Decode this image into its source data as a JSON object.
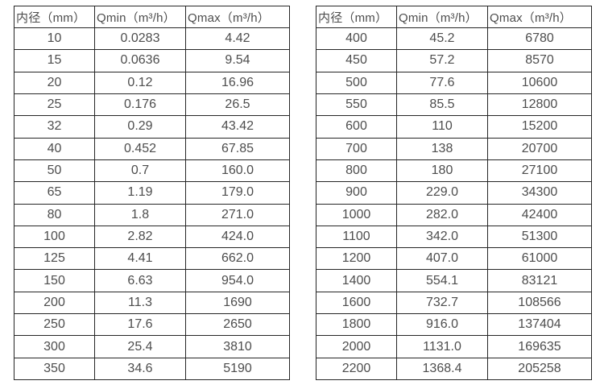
{
  "page": {
    "background": "#ffffff",
    "border_color": "#262626",
    "text_color": "#4d4d4d"
  },
  "left_table": {
    "headers": [
      "内径（mm）",
      "Qmin（m³/h）",
      "Qmax（m³/h）"
    ],
    "rows": [
      [
        "10",
        "0.0283",
        "4.42"
      ],
      [
        "15",
        "0.0636",
        "9.54"
      ],
      [
        "20",
        "0.12",
        "16.96"
      ],
      [
        "25",
        "0.176",
        "26.5"
      ],
      [
        "32",
        "0.29",
        "43.42"
      ],
      [
        "40",
        "0.452",
        "67.85"
      ],
      [
        "50",
        "0.7",
        "160.0"
      ],
      [
        "65",
        "1.19",
        "179.0"
      ],
      [
        "80",
        "1.8",
        "271.0"
      ],
      [
        "100",
        "2.82",
        "424.0"
      ],
      [
        "125",
        "4.41",
        "662.0"
      ],
      [
        "150",
        "6.63",
        "954.0"
      ],
      [
        "200",
        "11.3",
        "1690"
      ],
      [
        "250",
        "17.6",
        "2650"
      ],
      [
        "300",
        "25.4",
        "3810"
      ],
      [
        "350",
        "34.6",
        "5190"
      ]
    ]
  },
  "right_table": {
    "headers": [
      "内径（mm）",
      "Qmin（m³/h）",
      "Qmax（m³/h）"
    ],
    "rows": [
      [
        "400",
        "45.2",
        "6780"
      ],
      [
        "450",
        "57.2",
        "8570"
      ],
      [
        "500",
        "77.6",
        "10600"
      ],
      [
        "550",
        "85.5",
        "12800"
      ],
      [
        "600",
        "110",
        "15200"
      ],
      [
        "700",
        "138",
        "20700"
      ],
      [
        "800",
        "180",
        "27100"
      ],
      [
        "900",
        "229.0",
        "34300"
      ],
      [
        "1000",
        "282.0",
        "42400"
      ],
      [
        "1100",
        "342.0",
        "51300"
      ],
      [
        "1200",
        "407.0",
        "61000"
      ],
      [
        "1400",
        "554.1",
        "83121"
      ],
      [
        "1600",
        "732.7",
        "108566"
      ],
      [
        "1800",
        "916.0",
        "137404"
      ],
      [
        "2000",
        "1131.0",
        "169635"
      ],
      [
        "2200",
        "1368.4",
        "205258"
      ]
    ]
  }
}
